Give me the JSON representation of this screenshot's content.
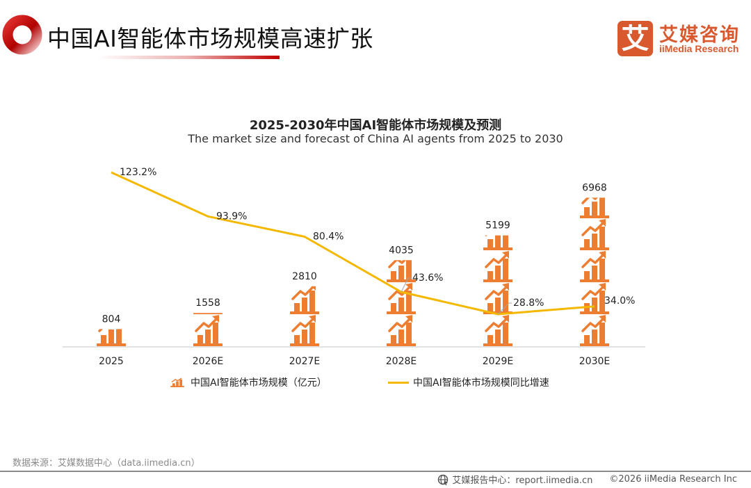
{
  "header": {
    "title": "中国AI智能体市场规模高速扩张",
    "logo_mark": "艾",
    "logo_cn": "艾媒咨询",
    "logo_en": "iiMedia Research",
    "accent_color": "#c00000",
    "logo_color": "#d8592e"
  },
  "chart_data": {
    "type": "bar",
    "title": "2025-2030年中国AI智能体市场规模及预测",
    "subtitle": "The market size and forecast of China AI agents from 2025 to 2030",
    "categories": [
      "2025",
      "2026E",
      "2027E",
      "2028E",
      "2029E",
      "2030E"
    ],
    "series": [
      {
        "name": "中国AI智能体市场规模（亿元）",
        "type": "pictograph-bar",
        "axis": "left",
        "color": "#ed7d31",
        "values": [
          804,
          1558,
          2810,
          4035,
          5199,
          6968
        ],
        "labels": [
          "804",
          "1558",
          "2810",
          "4035",
          "5199",
          "6968"
        ]
      },
      {
        "name": "中国AI智能体市场规模同比增速",
        "type": "line",
        "axis": "right",
        "color": "#f5b800",
        "values": [
          123.2,
          93.9,
          80.4,
          43.6,
          28.8,
          34.0
        ],
        "labels": [
          "123.2%",
          "93.9%",
          "80.4%",
          "43.6%",
          "28.8%",
          "34.0%"
        ]
      }
    ],
    "pictograph_unit": 1500,
    "xlabel": "",
    "ylabel": "",
    "y_axis_visible": false,
    "grid": false,
    "legend_position": "bottom"
  },
  "footer": {
    "source": "数据来源：艾媒数据中心（data.iimedia.cn）",
    "report_center": "艾媒报告中心：report.iimedia.cn",
    "copyright": "©2026  iiMedia Research  Inc"
  }
}
